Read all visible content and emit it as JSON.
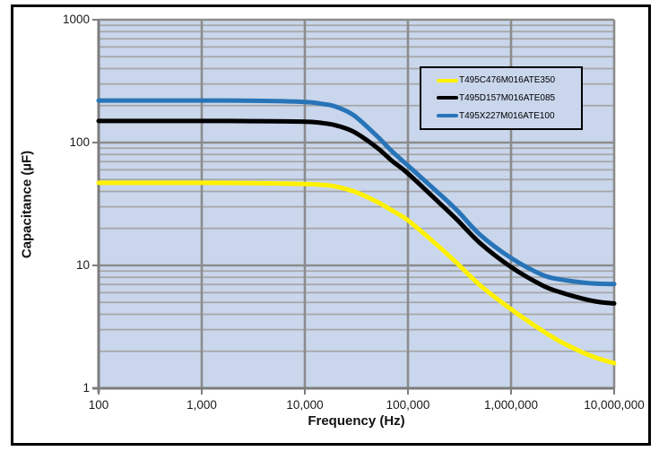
{
  "figure": {
    "background": "#FFFFFF",
    "border_color": "#000000"
  },
  "chart_data": {
    "type": "line",
    "title": "",
    "xlabel": "Frequency (Hz)",
    "ylabel": "Capacitance (µF)",
    "x_scale": "log",
    "y_scale": "log",
    "xlim": [
      100,
      10000000
    ],
    "ylim": [
      1,
      1000
    ],
    "x_ticks": [
      "100",
      "1,000",
      "10,000",
      "100,000",
      "1,000,000",
      "10,000,000"
    ],
    "y_ticks": [
      "1",
      "10",
      "100",
      "1000"
    ],
    "grid": "horizontal major+minor (log), vertical major decades only",
    "legend_position": "inside-top-right",
    "plot_bg": "#C9D6EC",
    "grid_minor_color": "#A6A6A6",
    "grid_major_color": "#8C8C8C",
    "axis_color": "#7D7D7D",
    "tick_label_color": "#1A1A1A",
    "series": [
      {
        "name": "T495C476M016ATE350",
        "color": "#FFF100",
        "nominal_capacitance_uF": 47,
        "points": [
          [
            100,
            47
          ],
          [
            316,
            47
          ],
          [
            1000,
            47
          ],
          [
            3160,
            46.8
          ],
          [
            10000,
            46
          ],
          [
            15000,
            45.2
          ],
          [
            20000,
            43.8
          ],
          [
            30000,
            40
          ],
          [
            50000,
            33
          ],
          [
            70000,
            28
          ],
          [
            100000,
            23.3
          ],
          [
            200000,
            14.2
          ],
          [
            300000,
            10.4
          ],
          [
            500000,
            6.9
          ],
          [
            1000000,
            4.4
          ],
          [
            2000000,
            2.95
          ],
          [
            3000000,
            2.4
          ],
          [
            5000000,
            1.95
          ],
          [
            7000000,
            1.75
          ],
          [
            10000000,
            1.6
          ]
        ]
      },
      {
        "name": "T495D157M016ATE085",
        "color": "#000000",
        "nominal_capacitance_uF": 150,
        "points": [
          [
            100,
            150
          ],
          [
            316,
            150
          ],
          [
            1000,
            150
          ],
          [
            3160,
            149.5
          ],
          [
            10000,
            148
          ],
          [
            15000,
            144
          ],
          [
            20000,
            138
          ],
          [
            30000,
            122
          ],
          [
            50000,
            91
          ],
          [
            70000,
            71
          ],
          [
            100000,
            56
          ],
          [
            200000,
            32.5
          ],
          [
            300000,
            23.5
          ],
          [
            500000,
            15.2
          ],
          [
            1000000,
            9.7
          ],
          [
            2000000,
            6.9
          ],
          [
            3000000,
            6.05
          ],
          [
            5000000,
            5.35
          ],
          [
            7000000,
            5.05
          ],
          [
            10000000,
            4.9
          ]
        ]
      },
      {
        "name": "T495X227M016ATE100",
        "color": "#2874B8",
        "nominal_capacitance_uF": 220,
        "points": [
          [
            100,
            220
          ],
          [
            316,
            220
          ],
          [
            1000,
            220
          ],
          [
            3160,
            219
          ],
          [
            10000,
            214
          ],
          [
            15000,
            206
          ],
          [
            20000,
            196
          ],
          [
            30000,
            166
          ],
          [
            50000,
            113
          ],
          [
            70000,
            85
          ],
          [
            100000,
            65
          ],
          [
            200000,
            38.5
          ],
          [
            300000,
            28
          ],
          [
            500000,
            17.8
          ],
          [
            1000000,
            11.5
          ],
          [
            2000000,
            8.4
          ],
          [
            3000000,
            7.7
          ],
          [
            5000000,
            7.25
          ],
          [
            7000000,
            7.1
          ],
          [
            10000000,
            7.05
          ]
        ]
      }
    ]
  }
}
